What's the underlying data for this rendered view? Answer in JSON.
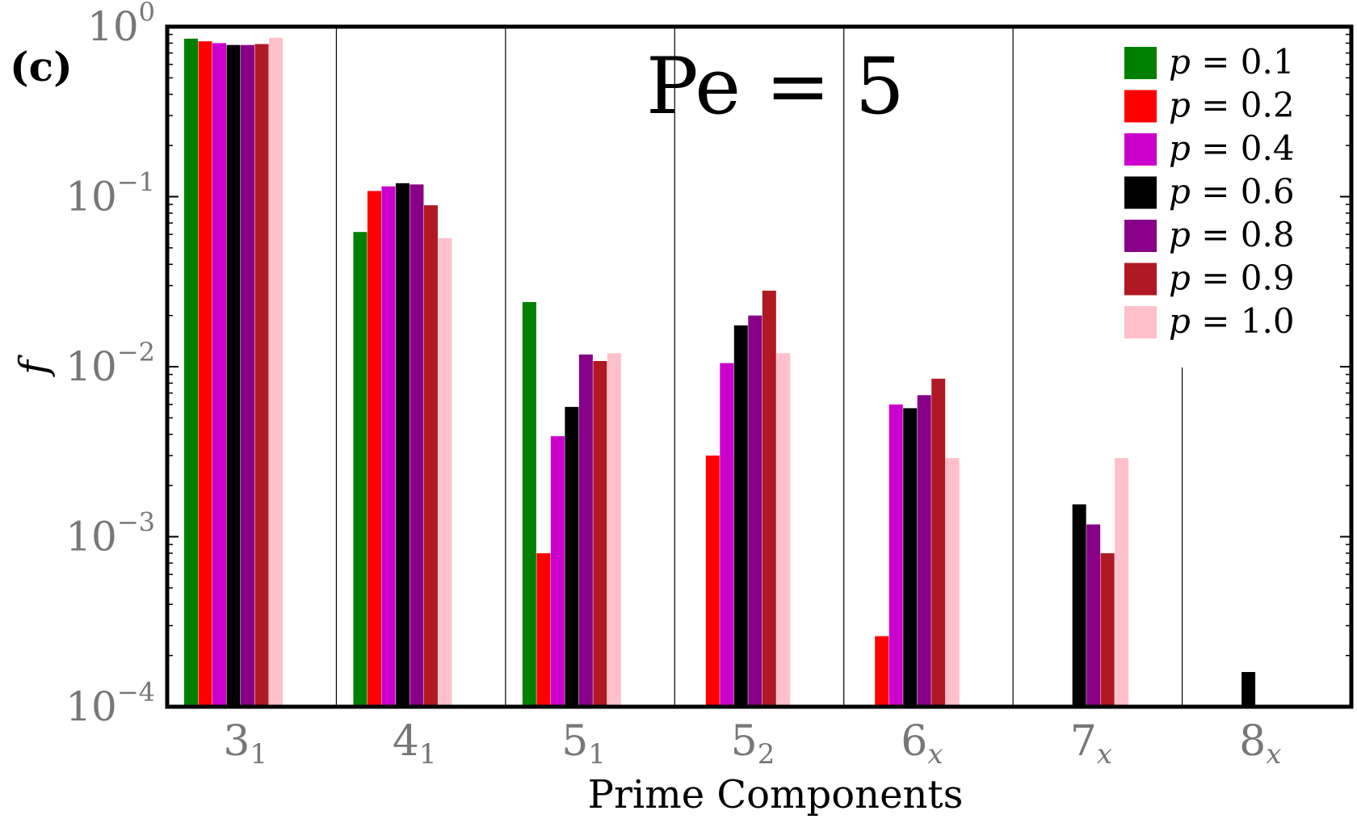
{
  "chart_data": {
    "type": "bar",
    "panel_label": "(c)",
    "annotation": "Pe = 5",
    "xlabel": "Prime Components",
    "ylabel": "f",
    "yscale": "log",
    "ylim": [
      0.0001,
      1
    ],
    "yticks": [
      {
        "base": "10",
        "exp": "0"
      },
      {
        "base": "10",
        "exp": "−1"
      },
      {
        "base": "10",
        "exp": "−2"
      },
      {
        "base": "10",
        "exp": "−3"
      },
      {
        "base": "10",
        "exp": "−4"
      }
    ],
    "categories": [
      {
        "main": "3",
        "sub": "1"
      },
      {
        "main": "4",
        "sub": "1"
      },
      {
        "main": "5",
        "sub": "1"
      },
      {
        "main": "5",
        "sub": "2"
      },
      {
        "main": "6",
        "sub": "x"
      },
      {
        "main": "7",
        "sub": "x"
      },
      {
        "main": "8",
        "sub": "x"
      }
    ],
    "legend_position": "top-right",
    "grid": false,
    "series": [
      {
        "name": "p = 0.1",
        "var": "p",
        "num": "0.1",
        "color": "#008000",
        "values": [
          0.85,
          0.062,
          0.024,
          null,
          null,
          null,
          null
        ]
      },
      {
        "name": "p = 0.2",
        "var": "p",
        "num": "0.2",
        "color": "#ff0000",
        "values": [
          0.82,
          0.108,
          0.0008,
          0.003,
          0.00026,
          null,
          null
        ]
      },
      {
        "name": "p = 0.4",
        "var": "p",
        "num": "0.4",
        "color": "#cc00cc",
        "values": [
          0.8,
          0.115,
          0.0039,
          0.0105,
          0.006,
          null,
          null
        ]
      },
      {
        "name": "p = 0.6",
        "var": "p",
        "num": "0.6",
        "color": "#000000",
        "values": [
          0.78,
          0.12,
          0.0058,
          0.0175,
          0.0057,
          0.00155,
          0.00016
        ]
      },
      {
        "name": "p = 0.8",
        "var": "p",
        "num": "0.8",
        "color": "#880088",
        "values": [
          0.78,
          0.118,
          0.0118,
          0.02,
          0.0068,
          0.00118,
          null
        ]
      },
      {
        "name": "p = 0.9",
        "var": "p",
        "num": "0.9",
        "color": "#b01923",
        "values": [
          0.79,
          0.089,
          0.0108,
          0.028,
          0.0085,
          0.0008,
          null
        ]
      },
      {
        "name": "p = 1.0",
        "var": "p",
        "num": "1.0",
        "color": "#ffc0cb",
        "values": [
          0.86,
          0.057,
          0.012,
          0.012,
          0.0029,
          0.0029,
          null
        ]
      }
    ]
  }
}
